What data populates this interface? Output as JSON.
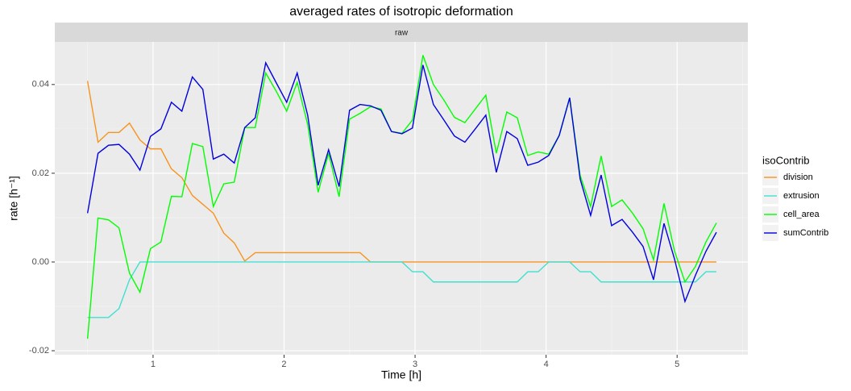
{
  "chart_data": {
    "type": "line",
    "title": "averaged rates of isotropic deformation",
    "facet": "raw",
    "xlabel": "Time [h]",
    "ylabel": "rate [h⁻¹]",
    "legend_title": "isoContrib",
    "legend": "right",
    "grid": true,
    "xlim": [
      0.25,
      5.54
    ],
    "ylim": [
      -0.0209,
      0.0496
    ],
    "xticks": [
      1,
      2,
      3,
      4,
      5
    ],
    "yticks": [
      {
        "value": -0.02,
        "label": "-0.02"
      },
      {
        "value": 0,
        "label": "0.00"
      },
      {
        "value": 0.02,
        "label": "0.02"
      },
      {
        "value": 0.04,
        "label": "0.04"
      }
    ],
    "x": [
      0.5,
      0.58,
      0.66,
      0.74,
      0.82,
      0.9,
      0.98,
      1.06,
      1.14,
      1.22,
      1.3,
      1.38,
      1.46,
      1.54,
      1.62,
      1.7,
      1.78,
      1.86,
      1.94,
      2.02,
      2.1,
      2.18,
      2.26,
      2.34,
      2.42,
      2.5,
      2.58,
      2.66,
      2.74,
      2.82,
      2.9,
      2.98,
      3.06,
      3.14,
      3.22,
      3.3,
      3.38,
      3.46,
      3.54,
      3.62,
      3.7,
      3.78,
      3.86,
      3.94,
      4.02,
      4.1,
      4.18,
      4.26,
      4.34,
      4.42,
      4.5,
      4.58,
      4.66,
      4.74,
      4.82,
      4.9,
      4.98,
      5.06,
      5.14,
      5.22,
      5.3
    ],
    "series": [
      {
        "name": "division",
        "color": "#f7941d",
        "values": [
          0.0408,
          0.027,
          0.0292,
          0.0292,
          0.0313,
          0.0275,
          0.0255,
          0.0255,
          0.021,
          0.019,
          0.015,
          0.013,
          0.011,
          0.0065,
          0.0043,
          0.0002,
          0.0021,
          0.0021,
          0.0021,
          0.0021,
          0.0021,
          0.0021,
          0.0021,
          0.0021,
          0.0021,
          0.0021,
          0.0021,
          0,
          0,
          0,
          0,
          0,
          0,
          0,
          0,
          0,
          0,
          0,
          0,
          0,
          0,
          0,
          0,
          0,
          0,
          0,
          0,
          0,
          0,
          0,
          0,
          0,
          0,
          0,
          0,
          0,
          0,
          0,
          0,
          0,
          0
        ]
      },
      {
        "name": "extrusion",
        "color": "#40e0d0",
        "values": [
          -0.0125,
          -0.0125,
          -0.0125,
          -0.0105,
          -0.004,
          0,
          0,
          0,
          0,
          0,
          0,
          0,
          0,
          0,
          0,
          0,
          0,
          0,
          0,
          0,
          0,
          0,
          0,
          0,
          0,
          0,
          0,
          0,
          0,
          0,
          0,
          -0.0022,
          -0.0022,
          -0.0045,
          -0.0045,
          -0.0045,
          -0.0045,
          -0.0045,
          -0.0045,
          -0.0045,
          -0.0045,
          -0.0045,
          -0.0022,
          -0.0022,
          0,
          0,
          0,
          -0.0022,
          -0.0022,
          -0.0045,
          -0.0045,
          -0.0045,
          -0.0045,
          -0.0045,
          -0.0045,
          -0.0045,
          -0.0045,
          -0.0045,
          -0.0045,
          -0.0022,
          -0.0022
        ]
      },
      {
        "name": "cell_area",
        "color": "#00ff00",
        "values": [
          -0.0173,
          0.0099,
          0.0095,
          0.0077,
          -0.0025,
          -0.0068,
          0.003,
          0.0045,
          0.0148,
          0.0147,
          0.0267,
          0.026,
          0.0125,
          0.0176,
          0.018,
          0.0303,
          0.0303,
          0.0426,
          0.0385,
          0.034,
          0.0405,
          0.031,
          0.0157,
          0.0245,
          0.0147,
          0.0322,
          0.0335,
          0.035,
          0.0345,
          0.0294,
          0.029,
          0.032,
          0.0466,
          0.04,
          0.0365,
          0.0326,
          0.0314,
          0.0345,
          0.0376,
          0.0245,
          0.0338,
          0.0325,
          0.024,
          0.0248,
          0.0243,
          0.0285,
          0.037,
          0.0195,
          0.0125,
          0.0239,
          0.0125,
          0.014,
          0.011,
          0.0075,
          0.0005,
          0.0132,
          0.0025,
          -0.0045,
          -0.001,
          0.0045,
          0.0088
        ]
      },
      {
        "name": "sumContrib",
        "color": "#0000e0",
        "values": [
          0.011,
          0.0245,
          0.0263,
          0.0265,
          0.0243,
          0.0207,
          0.0283,
          0.03,
          0.036,
          0.034,
          0.0417,
          0.0389,
          0.0232,
          0.0243,
          0.0223,
          0.0303,
          0.0325,
          0.0449,
          0.0404,
          0.036,
          0.0426,
          0.0331,
          0.0173,
          0.0253,
          0.017,
          0.0342,
          0.0355,
          0.0352,
          0.0342,
          0.0294,
          0.0289,
          0.0302,
          0.0444,
          0.0355,
          0.032,
          0.0284,
          0.027,
          0.03,
          0.0331,
          0.0202,
          0.0294,
          0.0278,
          0.0218,
          0.0225,
          0.024,
          0.0285,
          0.037,
          0.0187,
          0.0105,
          0.0196,
          0.0082,
          0.0096,
          0.0067,
          0.0035,
          -0.004,
          0.0087,
          0.0007,
          -0.0089,
          -0.003,
          0.0024,
          0.0067
        ]
      }
    ]
  }
}
